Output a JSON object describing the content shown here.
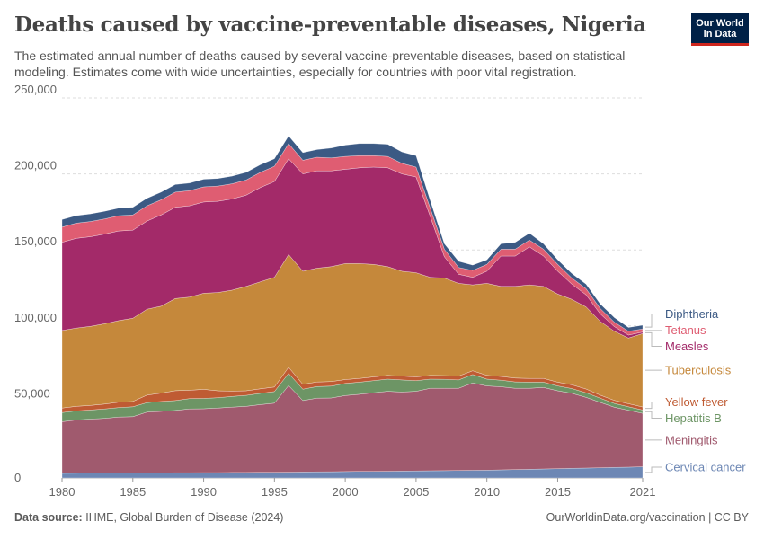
{
  "header": {
    "title": "Deaths caused by vaccine-preventable diseases, Nigeria",
    "subtitle": "The estimated annual number of deaths caused by several vaccine-preventable diseases, based on statistical modeling. Estimates come with wide uncertainties, especially for countries with poor vital registration.",
    "logo_line1": "Our World",
    "logo_line2": "in Data"
  },
  "footer": {
    "source_label": "Data source:",
    "source_text": "IHME, Global Burden of Disease (2024)",
    "right_text": "OurWorldinData.org/vaccination | CC BY"
  },
  "chart_data": {
    "type": "area",
    "stacked": true,
    "x": [
      1980,
      1981,
      1982,
      1983,
      1984,
      1985,
      1986,
      1987,
      1988,
      1989,
      1990,
      1991,
      1992,
      1993,
      1994,
      1995,
      1996,
      1997,
      1998,
      1999,
      2000,
      2001,
      2002,
      2003,
      2004,
      2005,
      2006,
      2007,
      2008,
      2009,
      2010,
      2011,
      2012,
      2013,
      2014,
      2015,
      2016,
      2017,
      2018,
      2019,
      2020,
      2021
    ],
    "xlim": [
      1980,
      2021
    ],
    "ylim": [
      0,
      250000
    ],
    "yticks": [
      0,
      50000,
      100000,
      150000,
      200000,
      250000
    ],
    "ytick_labels": [
      "0",
      "50,000",
      "100,000",
      "150,000",
      "200,000",
      "250,000"
    ],
    "xticks": [
      1980,
      1985,
      1990,
      1995,
      2000,
      2005,
      2010,
      2015,
      2021
    ],
    "xtick_labels": [
      "1980",
      "1985",
      "1990",
      "1995",
      "2000",
      "2005",
      "2010",
      "2015",
      "2021"
    ],
    "grid": "horizontal-dashed",
    "legend": "right",
    "series": [
      {
        "name": "Cervical cancer",
        "color": "#6d87b4",
        "values": [
          3000,
          3100,
          3200,
          3200,
          3300,
          3300,
          3300,
          3300,
          3400,
          3400,
          3500,
          3500,
          3600,
          3600,
          3700,
          3700,
          3800,
          3900,
          4000,
          4100,
          4200,
          4300,
          4300,
          4400,
          4500,
          4600,
          4700,
          4800,
          4900,
          5000,
          5100,
          5300,
          5500,
          5700,
          5900,
          6100,
          6300,
          6500,
          6700,
          6900,
          7100,
          7300
        ]
      },
      {
        "name": "Meningitis",
        "color": "#a05a6e",
        "values": [
          34000,
          35000,
          35500,
          36000,
          36800,
          37000,
          40000,
          40500,
          41000,
          42000,
          42000,
          42500,
          43000,
          43500,
          44500,
          45500,
          57000,
          47000,
          48500,
          48500,
          50000,
          50700,
          51700,
          52600,
          52000,
          52400,
          54300,
          54200,
          54100,
          57500,
          55400,
          54700,
          53500,
          53300,
          53600,
          51200,
          49400,
          46500,
          43000,
          39600,
          37400,
          35200
        ]
      },
      {
        "name": "Hepatitis B",
        "color": "#6d9565",
        "values": [
          6000,
          6000,
          6000,
          6200,
          6200,
          6500,
          6200,
          6500,
          6500,
          6800,
          6800,
          6800,
          7000,
          7200,
          7400,
          7600,
          8000,
          7500,
          7600,
          7800,
          8000,
          8000,
          8000,
          8000,
          8000,
          7000,
          6000,
          5900,
          5500,
          5500,
          4500,
          4300,
          4200,
          4000,
          3500,
          3200,
          3100,
          3000,
          2800,
          2500,
          2300,
          2200
        ]
      },
      {
        "name": "Yellow fever",
        "color": "#bf5b33",
        "values": [
          3000,
          3000,
          3000,
          3200,
          3500,
          3500,
          5000,
          5500,
          6500,
          5500,
          6000,
          4500,
          3500,
          3000,
          3000,
          3000,
          4000,
          3200,
          3000,
          3000,
          2500,
          2500,
          2500,
          2500,
          2500,
          2500,
          2500,
          2500,
          2500,
          2500,
          2500,
          2500,
          2500,
          2500,
          2500,
          2500,
          2500,
          2500,
          2000,
          2000,
          2000,
          2000
        ]
      },
      {
        "name": "Tuberculosis",
        "color": "#c5883b",
        "values": [
          51000,
          51500,
          52000,
          52800,
          53700,
          54700,
          56500,
          57200,
          60600,
          61300,
          63200,
          64700,
          66400,
          68700,
          70400,
          72200,
          74200,
          74400,
          74900,
          75600,
          76300,
          75500,
          74000,
          71500,
          69000,
          68500,
          64500,
          64100,
          61000,
          56500,
          60500,
          59200,
          60300,
          61500,
          60500,
          58000,
          56200,
          54000,
          48500,
          45500,
          43200,
          48300
        ]
      },
      {
        "name": "Measles",
        "color": "#a32a69",
        "values": [
          58000,
          59000,
          59000,
          59000,
          59000,
          58000,
          58000,
          60000,
          60000,
          60000,
          60000,
          60000,
          60000,
          60000,
          62000,
          63000,
          63000,
          64000,
          64000,
          63000,
          62000,
          63000,
          64000,
          65000,
          64000,
          63000,
          40000,
          14000,
          6000,
          5000,
          8000,
          20000,
          20000,
          25000,
          20000,
          15000,
          10000,
          8000,
          5000,
          3000,
          2000,
          1000
        ]
      },
      {
        "name": "Tetanus",
        "color": "#df5d72",
        "values": [
          10000,
          10000,
          10000,
          10000,
          10000,
          10000,
          10000,
          10000,
          10000,
          10000,
          10000,
          10000,
          10000,
          10000,
          10000,
          10000,
          10000,
          9000,
          9000,
          8500,
          8500,
          8000,
          7500,
          7500,
          7000,
          6500,
          5500,
          5000,
          4500,
          4500,
          4500,
          4500,
          4500,
          4500,
          4500,
          4500,
          4000,
          4000,
          3500,
          3000,
          2500,
          2000
        ]
      },
      {
        "name": "Diphtheria",
        "color": "#3c5a84",
        "values": [
          5000,
          5000,
          5000,
          5000,
          5000,
          5000,
          5000,
          5000,
          5000,
          5000,
          5000,
          5000,
          5000,
          5000,
          5000,
          5000,
          5000,
          5000,
          5000,
          6500,
          7500,
          8000,
          8000,
          8000,
          7500,
          7500,
          5000,
          3500,
          4000,
          3500,
          3000,
          3500,
          4500,
          4500,
          3500,
          3000,
          3000,
          3000,
          3000,
          3000,
          2500,
          2500
        ]
      }
    ]
  }
}
